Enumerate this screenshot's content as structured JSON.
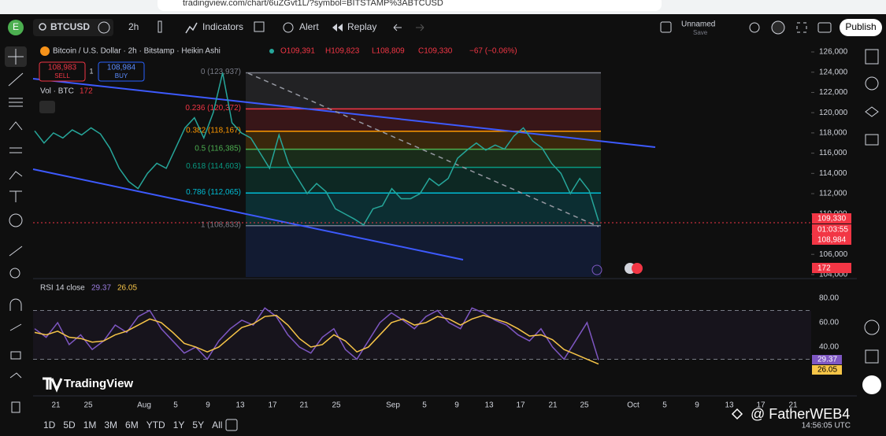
{
  "browser": {
    "url": "tradingview.com/chart/6uZGvt1L/?symbol=BITSTAMP%3ABTCUSD"
  },
  "toolbar": {
    "avatar": "E",
    "symbol": "BTCUSD",
    "interval": "2h",
    "indicators": "Indicators",
    "alert": "Alert",
    "replay": "Replay",
    "layout_name": "Unnamed",
    "layout_status": "Save",
    "publish": "Publish"
  },
  "legend": {
    "title": "Bitcoin / U.S. Dollar · 2h · Bitstamp · Heikin Ashi",
    "open": "O109,391",
    "high": "H109,823",
    "low": "L108,809",
    "close": "C109,330",
    "change": "−67 (−0.06%)",
    "sell_price": "108,983",
    "sell": "SELL",
    "spread": "1",
    "buy_price": "108,984",
    "buy": "BUY",
    "volume_label": "Vol · BTC",
    "volume": "172"
  },
  "chart_data": {
    "type": "line",
    "ylim": [
      103760,
      127090
    ],
    "yticks": [
      {
        "value": 126000,
        "label": "126,000"
      },
      {
        "value": 124000,
        "label": "124,000"
      },
      {
        "value": 122000,
        "label": "122,000"
      },
      {
        "value": 120000,
        "label": "120,000"
      },
      {
        "value": 118000,
        "label": "118,000"
      },
      {
        "value": 116000,
        "label": "116,000"
      },
      {
        "value": 114000,
        "label": "114,000"
      },
      {
        "value": 112000,
        "label": "112,000"
      },
      {
        "value": 110000,
        "label": "110,000"
      },
      {
        "value": 108000,
        "label": "108,000"
      },
      {
        "value": 106000,
        "label": "106,000"
      },
      {
        "value": 104000,
        "label": "104,000"
      }
    ],
    "series": [
      {
        "color": "#26a69a",
        "values": [
          118200,
          117000,
          118000,
          117500,
          118300,
          117800,
          118500,
          117900,
          116500,
          114500,
          113200,
          112500,
          114000,
          115000,
          114500,
          116500,
          118500,
          119500,
          117500,
          120000,
          123937,
          119000,
          118000,
          117500,
          116000,
          114500,
          117800,
          115000,
          113500,
          112000,
          113000,
          112200,
          110500,
          110000,
          109500,
          108900,
          110500,
          110800,
          112500,
          111500,
          111500,
          112000,
          113500,
          112800,
          113500,
          115500,
          116300,
          117000,
          116300,
          116800,
          116400,
          117700,
          118500,
          117200,
          116500,
          115000,
          114000,
          112000,
          113500,
          112300,
          109300
        ]
      }
    ],
    "fib_levels": [
      {
        "label": "0 (123,937)",
        "price": 123937,
        "color": "#787b86"
      },
      {
        "label": "0.236 (120,372)",
        "price": 120372,
        "color": "#f23645"
      },
      {
        "label": "0.382 (118,167)",
        "price": 118167,
        "color": "#ff9800"
      },
      {
        "label": "0.5 (116,385)",
        "price": 116385,
        "color": "#4caf50"
      },
      {
        "label": "0.618 (114,603)",
        "price": 114603,
        "color": "#089981"
      },
      {
        "label": "0.786 (112,065)",
        "price": 112065,
        "color": "#00bcd4"
      },
      {
        "label": "1 (108,833)",
        "price": 108833,
        "color": "#787b86"
      }
    ],
    "price_tags": {
      "last": "109,330",
      "countdown": "01:03:55",
      "buy": "108,984",
      "volume": "172"
    },
    "time_labels": [
      "21",
      "25",
      "Aug",
      "5",
      "9",
      "13",
      "17",
      "21",
      "25",
      "Sep",
      "5",
      "9",
      "13",
      "17",
      "21",
      "25",
      "Oct",
      "5",
      "9",
      "13",
      "17",
      "21"
    ]
  },
  "rsi": {
    "label": "RSI 14 close",
    "value_label": "29.37",
    "ma_label": "26.05",
    "ylim": [
      1.9,
      94.8
    ],
    "yticks": [
      {
        "value": 80,
        "label": "80.00"
      },
      {
        "value": 60,
        "label": "60.00"
      },
      {
        "value": 40,
        "label": "40.00"
      }
    ],
    "bands": [
      70,
      30
    ],
    "series": [
      {
        "color": "#7e57c2",
        "values": [
          55,
          48,
          60,
          42,
          50,
          38,
          45,
          58,
          52,
          65,
          70,
          55,
          45,
          35,
          40,
          30,
          45,
          55,
          62,
          58,
          72,
          65,
          50,
          40,
          35,
          48,
          55,
          38,
          30,
          45,
          60,
          68,
          62,
          55,
          65,
          70,
          60,
          55,
          72,
          68,
          62,
          58,
          50,
          45,
          55,
          40,
          30,
          45,
          60,
          29.37
        ]
      },
      {
        "color": "#f7c548",
        "values": [
          52,
          50,
          53,
          48,
          47,
          44,
          45,
          50,
          53,
          58,
          63,
          60,
          52,
          43,
          40,
          36,
          40,
          48,
          56,
          59,
          65,
          66,
          58,
          47,
          40,
          42,
          50,
          45,
          36,
          40,
          50,
          60,
          63,
          58,
          60,
          65,
          63,
          58,
          63,
          66,
          63,
          60,
          55,
          49,
          50,
          46,
          38,
          34,
          30,
          26.05
        ]
      }
    ]
  },
  "watermark": {
    "logo": "TradingView",
    "credit": "@ FatherWEB4"
  },
  "bottom_bar": {
    "ranges": [
      "1D",
      "5D",
      "1M",
      "3M",
      "6M",
      "YTD",
      "1Y",
      "5Y",
      "All"
    ],
    "clock": "14:56:05 UTC"
  }
}
